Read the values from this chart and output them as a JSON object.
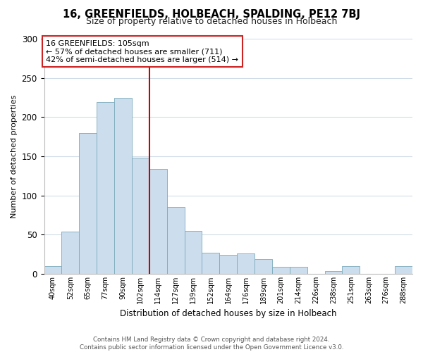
{
  "title": "16, GREENFIELDS, HOLBEACH, SPALDING, PE12 7BJ",
  "subtitle": "Size of property relative to detached houses in Holbeach",
  "xlabel": "Distribution of detached houses by size in Holbeach",
  "ylabel": "Number of detached properties",
  "bar_labels": [
    "40sqm",
    "52sqm",
    "65sqm",
    "77sqm",
    "90sqm",
    "102sqm",
    "114sqm",
    "127sqm",
    "139sqm",
    "152sqm",
    "164sqm",
    "176sqm",
    "189sqm",
    "201sqm",
    "214sqm",
    "226sqm",
    "238sqm",
    "251sqm",
    "263sqm",
    "276sqm",
    "288sqm"
  ],
  "bar_values": [
    10,
    54,
    180,
    219,
    225,
    148,
    134,
    85,
    55,
    27,
    24,
    26,
    19,
    9,
    9,
    0,
    4,
    10,
    0,
    0,
    10
  ],
  "bar_color": "#ccdded",
  "bar_edge_color": "#7aaabb",
  "highlight_bar_index": 5,
  "highlight_line_color": "#cc0000",
  "ylim": [
    0,
    300
  ],
  "yticks": [
    0,
    50,
    100,
    150,
    200,
    250,
    300
  ],
  "annotation_title": "16 GREENFIELDS: 105sqm",
  "annotation_line1": "← 57% of detached houses are smaller (711)",
  "annotation_line2": "42% of semi-detached houses are larger (514) →",
  "footer_line1": "Contains HM Land Registry data © Crown copyright and database right 2024.",
  "footer_line2": "Contains public sector information licensed under the Open Government Licence v3.0.",
  "background_color": "#ffffff",
  "grid_color": "#d0dde8"
}
